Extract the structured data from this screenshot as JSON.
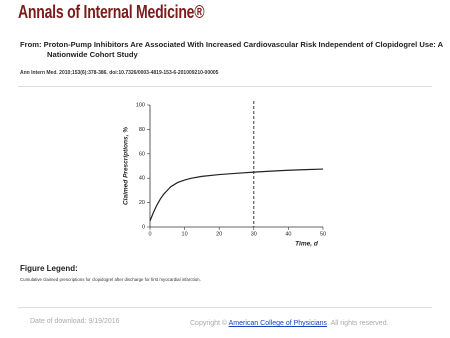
{
  "header": {
    "logo": "Annals of Internal Medicine®",
    "from": "From: Proton-Pump Inhibitors Are Associated With Increased Cardiovascular Risk Independent of Clopidogrel Use: A Nationwide Cohort Study",
    "citation": "Ann Intern Med. 2010;153(6):378-386. doi:10.7326/0003-4819-153-6-201009210-00005"
  },
  "chart_data": {
    "type": "line",
    "xlabel": "Time, d",
    "ylabel": "Claimed Prescriptions, %",
    "x": [
      0,
      1,
      2,
      3,
      4,
      5,
      6,
      8,
      10,
      12,
      15,
      20,
      25,
      30,
      35,
      40,
      45,
      50
    ],
    "values": [
      5,
      12,
      18,
      23,
      27,
      30,
      33,
      36.5,
      38.5,
      40,
      41.5,
      43,
      44,
      45,
      45.8,
      46.5,
      47,
      47.5
    ],
    "color": "#222222",
    "xlim": [
      0,
      50
    ],
    "xticks": [
      0,
      10,
      20,
      30,
      40,
      50
    ],
    "ylim": [
      0,
      100
    ],
    "yticks": [
      0,
      20,
      40,
      60,
      80,
      100
    ],
    "reference_x": 30
  },
  "legend": {
    "title": "Figure Legend:",
    "text": "Cumulative claimed prescriptions for clopidogrel after discharge for first myocardial infarction."
  },
  "footer": {
    "date": "Date of download:  9/19/2016",
    "copyright": "Copyright ©",
    "publisher": "American College of Physicians",
    "rights": ". All rights reserved."
  }
}
